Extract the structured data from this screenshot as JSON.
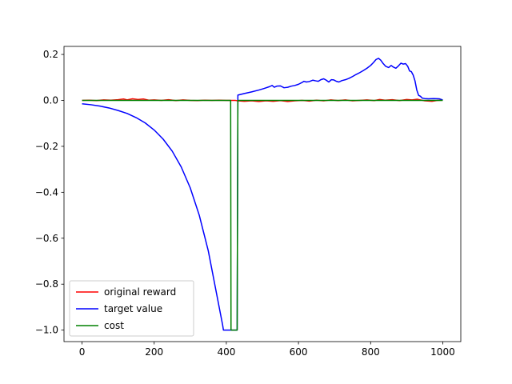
{
  "chart_data": {
    "type": "line",
    "xlim": [
      -50,
      1050
    ],
    "ylim": [
      -1.05,
      0.235
    ],
    "x_ticks": [
      0,
      200,
      400,
      600,
      800,
      1000
    ],
    "x_tick_labels": [
      "0",
      "200",
      "400",
      "600",
      "800",
      "1000"
    ],
    "y_ticks": [
      -1.0,
      -0.8,
      -0.6,
      -0.4,
      -0.2,
      0.0,
      0.2
    ],
    "y_tick_labels": [
      "−1.0",
      "−0.8",
      "−0.6",
      "−0.4",
      "−0.2",
      "0.0",
      "0.2"
    ],
    "grid": false,
    "legend_position": "lower-left",
    "series": [
      {
        "name": "original reward",
        "color": "#ff0000",
        "points": [
          [
            0,
            0.0
          ],
          [
            20,
            0.001
          ],
          [
            40,
            -0.001
          ],
          [
            60,
            0.002
          ],
          [
            80,
            0.001
          ],
          [
            100,
            0.003
          ],
          [
            115,
            0.006
          ],
          [
            125,
            0.002
          ],
          [
            140,
            0.007
          ],
          [
            155,
            0.004
          ],
          [
            170,
            0.006
          ],
          [
            185,
            0.001
          ],
          [
            200,
            0.002
          ],
          [
            220,
            0.0
          ],
          [
            240,
            0.003
          ],
          [
            260,
            -0.001
          ],
          [
            280,
            0.002
          ],
          [
            300,
            0.0
          ],
          [
            320,
            -0.001
          ],
          [
            340,
            0.001
          ],
          [
            360,
            0.0
          ],
          [
            380,
            0.001
          ],
          [
            400,
            0.0
          ],
          [
            412,
            0.0
          ],
          [
            425,
            0.0
          ],
          [
            432,
            -0.002
          ],
          [
            450,
            -0.004
          ],
          [
            470,
            -0.002
          ],
          [
            490,
            -0.005
          ],
          [
            510,
            -0.002
          ],
          [
            530,
            -0.004
          ],
          [
            550,
            -0.001
          ],
          [
            570,
            -0.005
          ],
          [
            590,
            -0.002
          ],
          [
            610,
            0.0
          ],
          [
            630,
            -0.003
          ],
          [
            650,
            0.001
          ],
          [
            670,
            -0.002
          ],
          [
            690,
            0.002
          ],
          [
            710,
            -0.001
          ],
          [
            730,
            0.002
          ],
          [
            750,
            -0.002
          ],
          [
            770,
            0.0
          ],
          [
            790,
            0.002
          ],
          [
            810,
            -0.001
          ],
          [
            825,
            0.004
          ],
          [
            840,
            0.001
          ],
          [
            860,
            0.003
          ],
          [
            880,
            -0.001
          ],
          [
            900,
            0.004
          ],
          [
            915,
            0.002
          ],
          [
            930,
            0.005
          ],
          [
            950,
            -0.002
          ],
          [
            970,
            -0.004
          ],
          [
            985,
            0.0
          ],
          [
            1000,
            0.001
          ]
        ]
      },
      {
        "name": "target value",
        "color": "#0000ff",
        "points": [
          [
            0,
            -0.015
          ],
          [
            25,
            -0.019
          ],
          [
            50,
            -0.025
          ],
          [
            75,
            -0.033
          ],
          [
            100,
            -0.044
          ],
          [
            125,
            -0.057
          ],
          [
            150,
            -0.075
          ],
          [
            175,
            -0.098
          ],
          [
            200,
            -0.129
          ],
          [
            225,
            -0.169
          ],
          [
            250,
            -0.221
          ],
          [
            275,
            -0.29
          ],
          [
            300,
            -0.381
          ],
          [
            325,
            -0.5
          ],
          [
            350,
            -0.655
          ],
          [
            375,
            -0.858
          ],
          [
            390,
            -0.98
          ],
          [
            392,
            -1.0
          ],
          [
            410,
            -1.0
          ],
          [
            430,
            -1.0
          ],
          [
            432,
            0.023
          ],
          [
            450,
            0.03
          ],
          [
            470,
            0.037
          ],
          [
            490,
            0.045
          ],
          [
            505,
            0.052
          ],
          [
            520,
            0.06
          ],
          [
            527,
            0.065
          ],
          [
            533,
            0.057
          ],
          [
            540,
            0.062
          ],
          [
            550,
            0.063
          ],
          [
            560,
            0.055
          ],
          [
            570,
            0.057
          ],
          [
            580,
            0.062
          ],
          [
            590,
            0.065
          ],
          [
            600,
            0.07
          ],
          [
            610,
            0.078
          ],
          [
            615,
            0.083
          ],
          [
            622,
            0.08
          ],
          [
            630,
            0.082
          ],
          [
            640,
            0.088
          ],
          [
            648,
            0.085
          ],
          [
            655,
            0.083
          ],
          [
            662,
            0.09
          ],
          [
            670,
            0.094
          ],
          [
            677,
            0.088
          ],
          [
            684,
            0.08
          ],
          [
            691,
            0.09
          ],
          [
            698,
            0.089
          ],
          [
            705,
            0.083
          ],
          [
            712,
            0.08
          ],
          [
            720,
            0.086
          ],
          [
            730,
            0.09
          ],
          [
            740,
            0.096
          ],
          [
            750,
            0.104
          ],
          [
            760,
            0.113
          ],
          [
            770,
            0.121
          ],
          [
            780,
            0.13
          ],
          [
            790,
            0.14
          ],
          [
            800,
            0.152
          ],
          [
            808,
            0.165
          ],
          [
            815,
            0.178
          ],
          [
            822,
            0.183
          ],
          [
            828,
            0.175
          ],
          [
            835,
            0.16
          ],
          [
            842,
            0.148
          ],
          [
            850,
            0.143
          ],
          [
            857,
            0.152
          ],
          [
            863,
            0.145
          ],
          [
            870,
            0.14
          ],
          [
            877,
            0.15
          ],
          [
            884,
            0.162
          ],
          [
            890,
            0.158
          ],
          [
            897,
            0.16
          ],
          [
            903,
            0.148
          ],
          [
            908,
            0.128
          ],
          [
            913,
            0.125
          ],
          [
            918,
            0.11
          ],
          [
            923,
            0.085
          ],
          [
            928,
            0.045
          ],
          [
            933,
            0.022
          ],
          [
            938,
            0.018
          ],
          [
            943,
            0.01
          ],
          [
            950,
            0.008
          ],
          [
            960,
            0.007
          ],
          [
            975,
            0.008
          ],
          [
            990,
            0.007
          ],
          [
            1000,
            0.002
          ]
        ]
      },
      {
        "name": "cost",
        "color": "#008000",
        "points": [
          [
            0,
            0.0
          ],
          [
            408,
            0.0
          ],
          [
            412,
            0.0
          ],
          [
            413,
            -1.0
          ],
          [
            430,
            -1.0
          ],
          [
            432,
            0.0
          ],
          [
            1000,
            0.0
          ]
        ]
      }
    ]
  }
}
